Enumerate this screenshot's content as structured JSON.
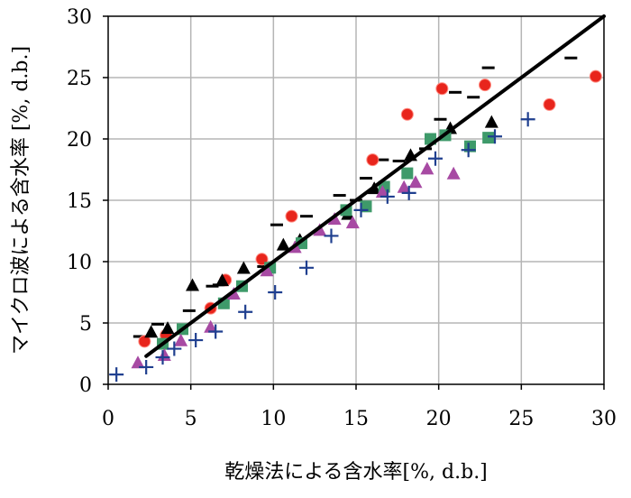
{
  "chart_data": {
    "type": "scatter",
    "title": "",
    "xlabel": "乾燥法による含水率[%, d.b.]",
    "ylabel": "マイクロ波による含水率 [%, d.b.]",
    "xlim": [
      0,
      30
    ],
    "ylim": [
      0,
      30
    ],
    "xticks": [
      0,
      5,
      10,
      15,
      20,
      25,
      30
    ],
    "yticks": [
      0,
      5,
      10,
      15,
      20,
      25,
      30
    ],
    "grid": true,
    "legend": "none",
    "series": [
      {
        "marker": "dash",
        "color": "#000000",
        "points": [
          [
            1.9,
            3.9
          ],
          [
            3.0,
            4.9
          ],
          [
            4.9,
            6.0
          ],
          [
            6.3,
            8.0
          ],
          [
            6.7,
            8.1
          ],
          [
            9.4,
            9.6
          ],
          [
            10.2,
            13.0
          ],
          [
            12.0,
            13.7
          ],
          [
            14.0,
            15.4
          ],
          [
            15.0,
            15.0
          ],
          [
            15.6,
            16.8
          ],
          [
            16.6,
            18.3
          ],
          [
            17.6,
            18.2
          ],
          [
            19.2,
            19.2
          ],
          [
            20.1,
            21.6
          ],
          [
            21.0,
            23.8
          ],
          [
            22.1,
            23.4
          ],
          [
            23.0,
            25.8
          ],
          [
            28.0,
            26.6
          ]
        ]
      },
      {
        "marker": "circle",
        "color": "#e8251c",
        "points": [
          [
            2.2,
            3.5
          ],
          [
            3.5,
            4.0
          ],
          [
            6.2,
            6.2
          ],
          [
            7.1,
            8.5
          ],
          [
            9.3,
            10.2
          ],
          [
            11.1,
            13.7
          ],
          [
            16.0,
            18.3
          ],
          [
            18.1,
            22.0
          ],
          [
            20.2,
            24.1
          ],
          [
            22.8,
            24.4
          ],
          [
            26.7,
            22.8
          ],
          [
            29.5,
            25.1
          ]
        ]
      },
      {
        "marker": "triangle",
        "color": "#000000",
        "points": [
          [
            2.6,
            4.2
          ],
          [
            3.6,
            4.5
          ],
          [
            5.1,
            8.0
          ],
          [
            6.9,
            8.4
          ],
          [
            8.2,
            9.4
          ],
          [
            10.6,
            11.3
          ],
          [
            11.6,
            11.7
          ],
          [
            14.5,
            13.8
          ],
          [
            16.1,
            15.9
          ],
          [
            18.3,
            18.6
          ],
          [
            20.7,
            20.8
          ],
          [
            23.2,
            21.3
          ]
        ]
      },
      {
        "marker": "square",
        "color": "#3e9a6a",
        "points": [
          [
            3.3,
            3.3
          ],
          [
            4.5,
            4.5
          ],
          [
            7.0,
            6.6
          ],
          [
            8.1,
            8.0
          ],
          [
            9.8,
            9.5
          ],
          [
            11.7,
            11.5
          ],
          [
            14.4,
            14.2
          ],
          [
            15.6,
            14.5
          ],
          [
            16.7,
            16.1
          ],
          [
            18.1,
            17.2
          ],
          [
            19.5,
            20.0
          ],
          [
            20.4,
            20.3
          ],
          [
            21.9,
            19.4
          ],
          [
            23.0,
            20.1
          ]
        ]
      },
      {
        "marker": "triangle",
        "color": "#a74aa3",
        "points": [
          [
            1.8,
            1.7
          ],
          [
            3.4,
            2.3
          ],
          [
            4.4,
            3.5
          ],
          [
            6.2,
            4.6
          ],
          [
            7.6,
            7.3
          ],
          [
            9.6,
            9.2
          ],
          [
            11.3,
            11.1
          ],
          [
            12.8,
            12.5
          ],
          [
            13.7,
            13.4
          ],
          [
            14.8,
            13.1
          ],
          [
            16.6,
            15.6
          ],
          [
            17.9,
            16.0
          ],
          [
            18.6,
            16.4
          ],
          [
            19.3,
            17.5
          ],
          [
            20.9,
            17.1
          ]
        ]
      },
      {
        "marker": "plus",
        "color": "#1f3f8f",
        "points": [
          [
            0.5,
            0.8
          ],
          [
            2.3,
            1.4
          ],
          [
            3.3,
            2.2
          ],
          [
            4.0,
            2.9
          ],
          [
            5.3,
            3.6
          ],
          [
            6.5,
            4.3
          ],
          [
            8.3,
            5.9
          ],
          [
            10.1,
            7.5
          ],
          [
            12.0,
            9.5
          ],
          [
            13.5,
            12.1
          ],
          [
            15.3,
            14.2
          ],
          [
            16.9,
            15.3
          ],
          [
            18.2,
            15.6
          ],
          [
            19.8,
            18.4
          ],
          [
            21.8,
            19.1
          ],
          [
            23.4,
            20.2
          ],
          [
            25.4,
            21.6
          ]
        ]
      }
    ],
    "lines": [
      {
        "points": [
          [
            2.3,
            2.3
          ],
          [
            30,
            30
          ]
        ],
        "color": "#000000"
      }
    ]
  }
}
